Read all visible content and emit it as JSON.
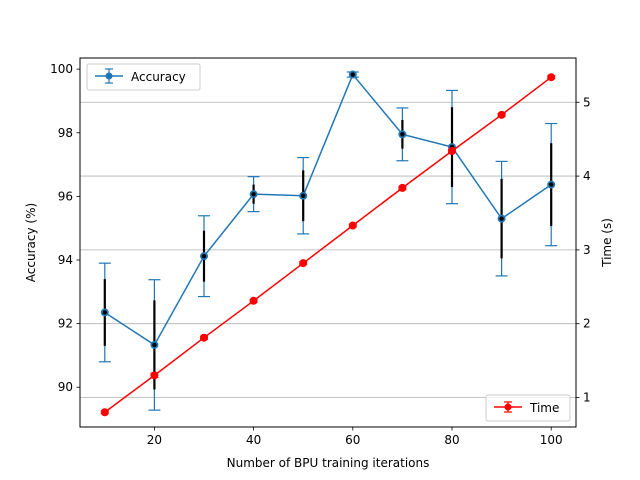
{
  "chart_data": {
    "type": "line",
    "title": "",
    "xlabel": "Number of BPU training iterations",
    "ylabel": "Accuracy (%)",
    "y2label": "Time (s)",
    "xlim": [
      5,
      105
    ],
    "ylim": [
      88.75,
      100.35
    ],
    "y2lim": [
      0.6,
      5.6
    ],
    "x_ticks": [
      20,
      40,
      60,
      80,
      100
    ],
    "y_ticks": [
      90,
      92,
      94,
      96,
      98,
      100
    ],
    "y2_ticks": [
      1,
      2,
      3,
      4,
      5
    ],
    "grid": "horizontal lines at right-axis ticks",
    "series": [
      {
        "name": "Accuracy",
        "axis": "left",
        "color": "#1f77b4",
        "legend_position": "upper left",
        "x": [
          10,
          20,
          30,
          40,
          50,
          60,
          70,
          80,
          90,
          100
        ],
        "values": [
          92.35,
          91.33,
          94.12,
          96.07,
          96.02,
          99.83,
          97.95,
          97.55,
          95.3,
          96.37
        ],
        "error": [
          1.55,
          2.05,
          1.27,
          0.55,
          1.2,
          0.08,
          0.83,
          1.78,
          1.8,
          1.92
        ],
        "inner_error": [
          1.05,
          1.4,
          0.8,
          0.3,
          0.8,
          0.05,
          0.45,
          1.25,
          1.25,
          1.3
        ]
      },
      {
        "name": "Time",
        "axis": "right",
        "color": "#ff0000",
        "legend_position": "lower right",
        "x": [
          10,
          20,
          30,
          40,
          50,
          60,
          70,
          80,
          90,
          100
        ],
        "values": [
          0.8,
          1.3,
          1.81,
          2.31,
          2.82,
          3.33,
          3.84,
          4.34,
          4.83,
          5.34
        ],
        "error": [
          0.02,
          0.03,
          0.02,
          0.02,
          0.02,
          0.02,
          0.02,
          0.02,
          0.02,
          0.02
        ]
      }
    ]
  }
}
